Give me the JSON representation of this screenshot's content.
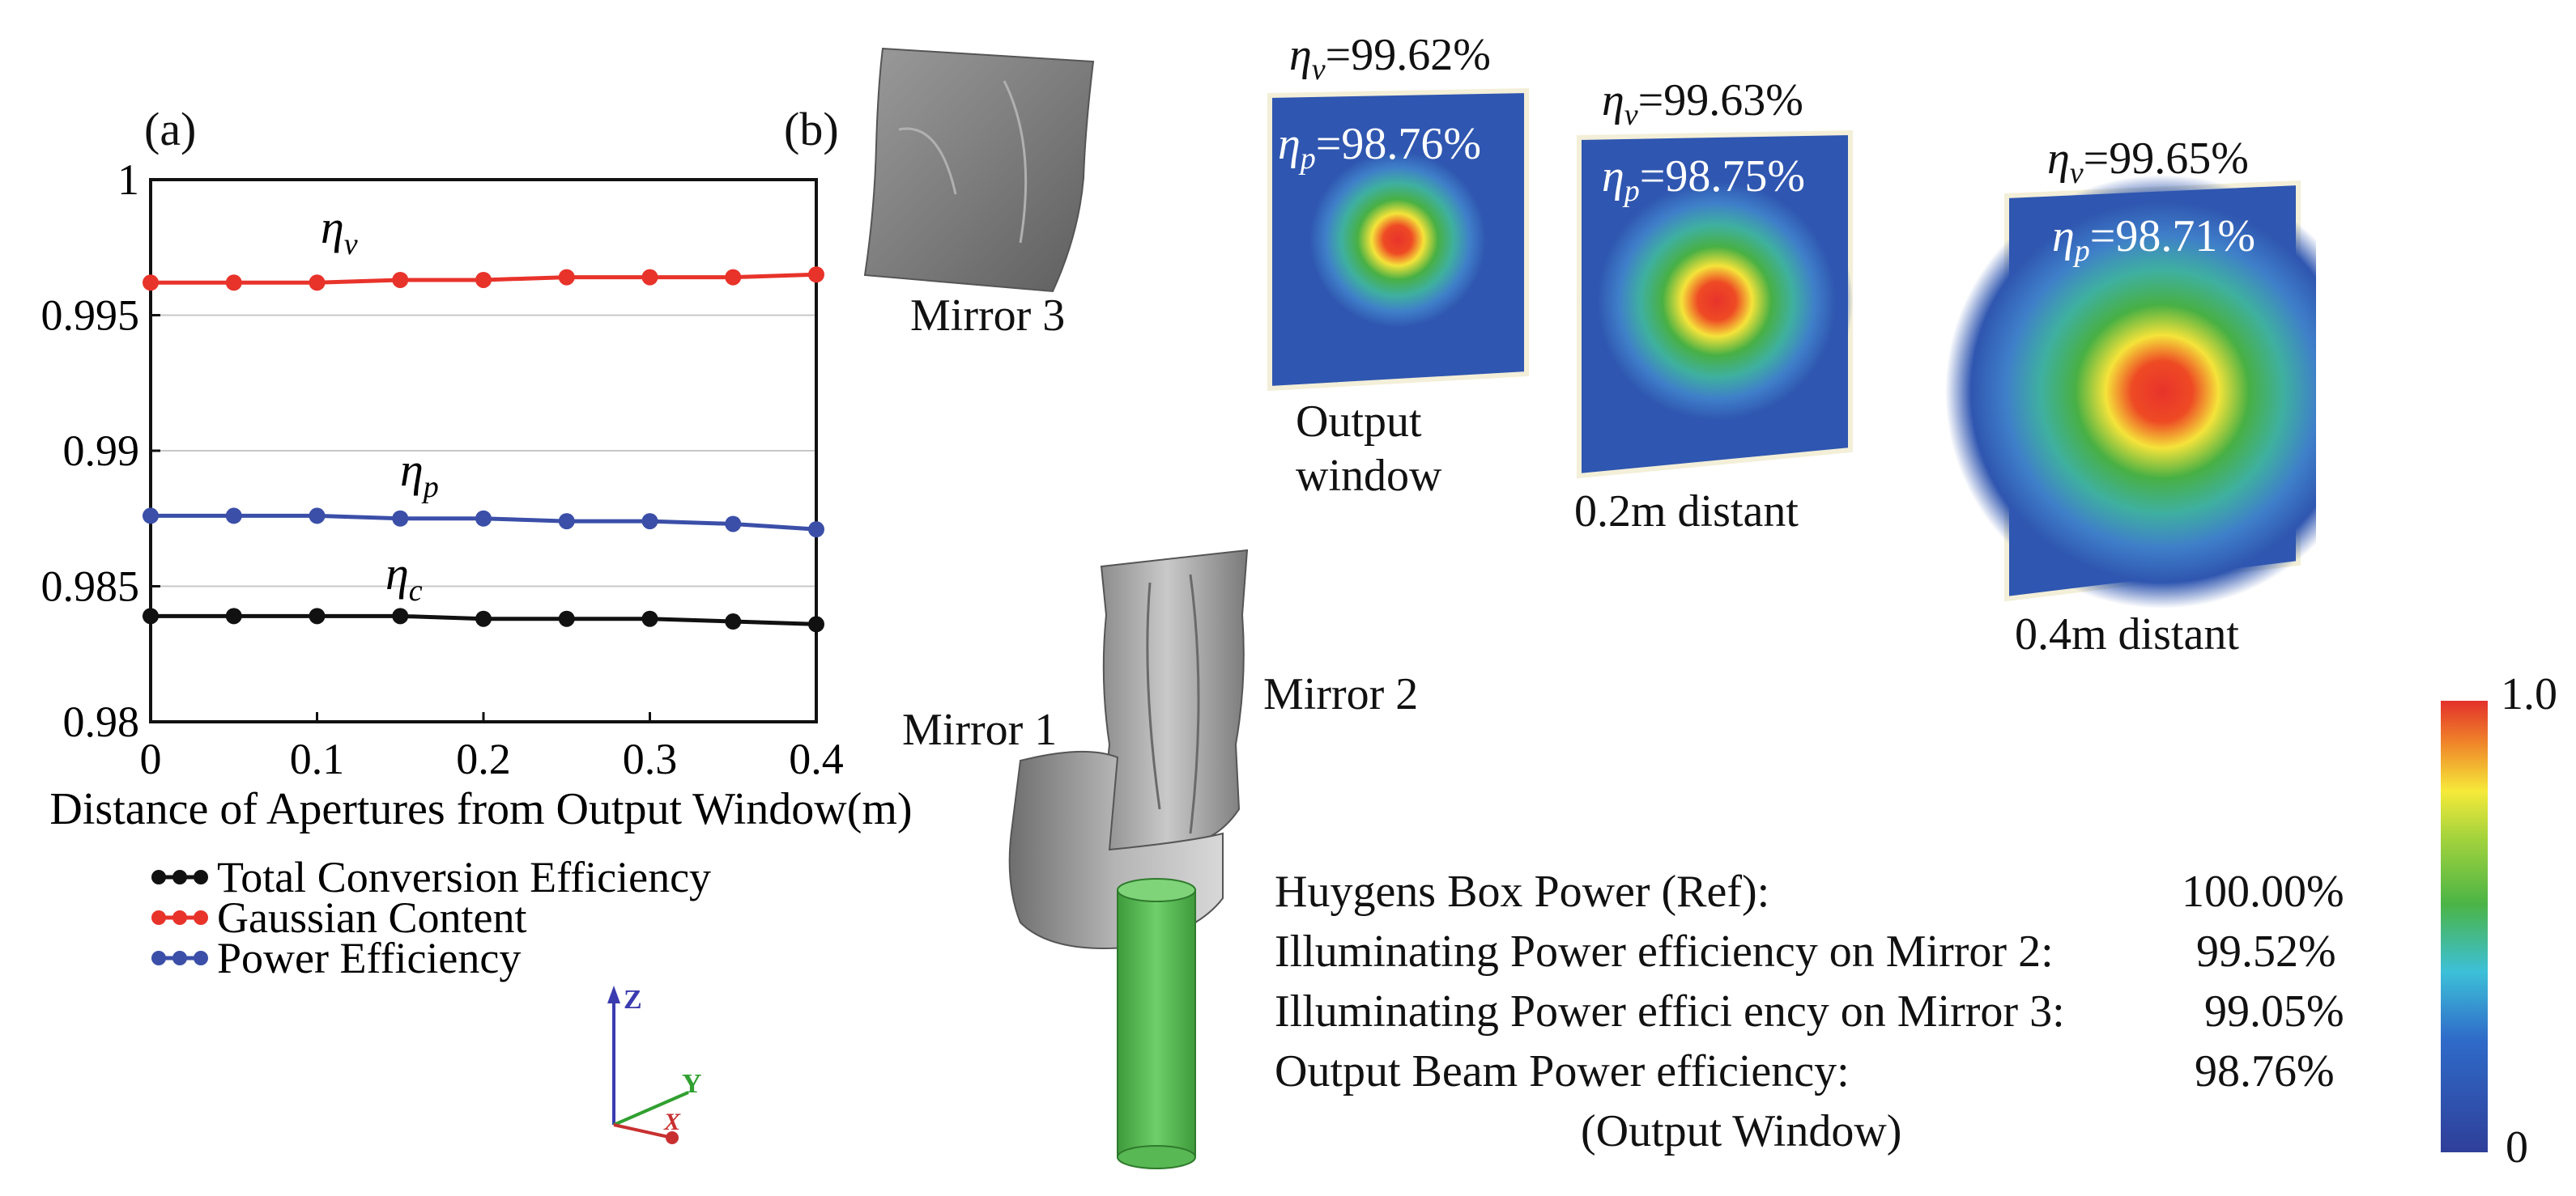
{
  "panels": {
    "a": "(a)",
    "b": "(b)"
  },
  "chart_data": {
    "type": "line",
    "xlabel": "Distance of Apertures from Output Window(m)",
    "ylabel": "",
    "xlim": [
      0,
      0.4
    ],
    "ylim": [
      0.98,
      1.0
    ],
    "x_ticks": [
      0,
      0.1,
      0.2,
      0.3,
      0.4
    ],
    "x_tick_labels": [
      "0",
      "0.1",
      "0.2",
      "0.3",
      "0.4"
    ],
    "y_ticks": [
      0.98,
      0.985,
      0.99,
      0.995,
      1.0
    ],
    "y_tick_labels": [
      "0.98",
      "0.985",
      "0.99",
      "0.995",
      "1"
    ],
    "grid": true,
    "legend_position": "below",
    "x": [
      0,
      0.05,
      0.1,
      0.15,
      0.2,
      0.25,
      0.3,
      0.35,
      0.4
    ],
    "series": [
      {
        "name": "Total Conversion Efficiency",
        "annotation": "η",
        "annotation_sub": "c",
        "color": "#111111",
        "values": [
          0.9839,
          0.9839,
          0.9839,
          0.9839,
          0.9838,
          0.9838,
          0.9838,
          0.9837,
          0.9836
        ]
      },
      {
        "name": "Gaussian Content",
        "annotation": "η",
        "annotation_sub": "v",
        "color": "#e8332b",
        "values": [
          0.9962,
          0.9962,
          0.9962,
          0.9963,
          0.9963,
          0.9964,
          0.9964,
          0.9964,
          0.9965
        ]
      },
      {
        "name": "Power Efficiency",
        "annotation": "η",
        "annotation_sub": "p",
        "color": "#3b4fa8",
        "values": [
          0.9876,
          0.9876,
          0.9876,
          0.9875,
          0.9875,
          0.9874,
          0.9874,
          0.9873,
          0.9871
        ]
      }
    ]
  },
  "mirrors": {
    "mirror1": "Mirror 1",
    "mirror2": "Mirror 2",
    "mirror3": "Mirror 3"
  },
  "axes_triad": {
    "z": "Z",
    "y": "Y",
    "x": "X"
  },
  "beam_panels": [
    {
      "eta_v_sym": "η",
      "eta_v_sub": "v",
      "eta_v": "=99.62%",
      "eta_p_sym": "η",
      "eta_p_sub": "p",
      "eta_p": "=98.76%",
      "caption_line1": "Output",
      "caption_line2": "window"
    },
    {
      "eta_v_sym": "η",
      "eta_v_sub": "v",
      "eta_v": "=99.63%",
      "eta_p_sym": "η",
      "eta_p_sub": "p",
      "eta_p": "=98.75%",
      "caption_line1": "0.2m distant",
      "caption_line2": ""
    },
    {
      "eta_v_sym": "η",
      "eta_v_sub": "v",
      "eta_v": "=99.65%",
      "eta_p_sym": "η",
      "eta_p_sub": "p",
      "eta_p": "=98.71%",
      "caption_line1": "0.4m distant",
      "caption_line2": ""
    }
  ],
  "colorbar": {
    "max_label": "1.0",
    "min_label": "0"
  },
  "power_table": {
    "rows": [
      {
        "label": "Huygens Box Power (Ref):",
        "value": "100.00%"
      },
      {
        "label": "Illuminating Power efficiency on Mirror 2:",
        "value": "99.52%"
      },
      {
        "label": "Illuminating Power effici ency on Mirror 3:",
        "value": "99.05%"
      },
      {
        "label": "Output Beam Power efficiency:",
        "value": "98.76%"
      }
    ],
    "note": "(Output Window)"
  }
}
